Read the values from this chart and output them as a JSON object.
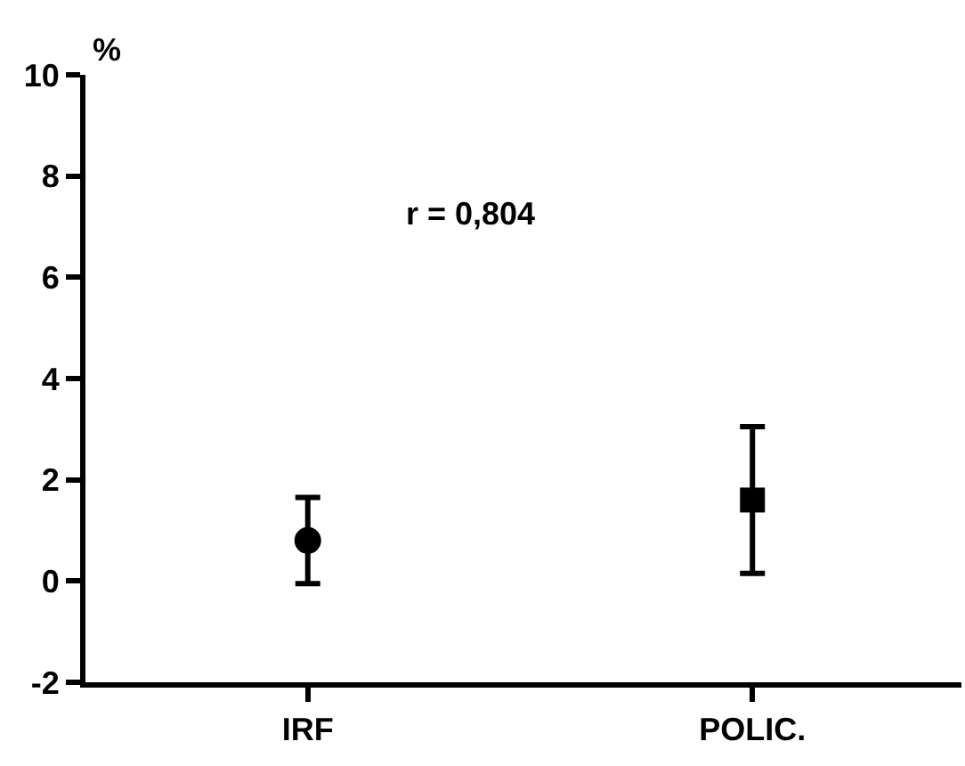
{
  "chart_data": {
    "type": "scatter",
    "ylabel": "%",
    "categories": [
      "IRF",
      "POLIC."
    ],
    "series": [
      {
        "color": "#000000",
        "values": [
          0.8,
          null
        ],
        "errors": [
          0.85,
          null
        ],
        "marker": "circle"
      },
      {
        "color": "#000000",
        "values": [
          null,
          1.6
        ],
        "errors": [
          null,
          1.45
        ],
        "marker": "square"
      }
    ],
    "ylim": [
      -2,
      10
    ],
    "yticks": [
      -2,
      0,
      2,
      4,
      6,
      8,
      10
    ],
    "grid": false,
    "annotations": [
      "r = 0,804"
    ]
  }
}
